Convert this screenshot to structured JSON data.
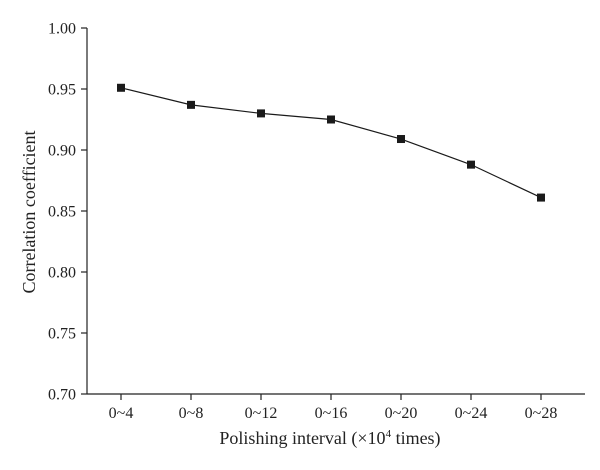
{
  "chart_data": {
    "type": "line",
    "xlabel": "Polishing interval (×10⁴ times)",
    "xlabel_parts": {
      "pre": "Polishing interval (×10",
      "sup": "4",
      "post": " times)"
    },
    "ylabel": "Correlation coefficient",
    "categories": [
      "0~4",
      "0~8",
      "0~12",
      "0~16",
      "0~20",
      "0~24",
      "0~28"
    ],
    "series": [
      {
        "values": [
          0.951,
          0.937,
          0.93,
          0.925,
          0.909,
          0.888,
          0.861
        ]
      }
    ],
    "ylim": [
      0.7,
      1.0
    ],
    "yticks": [
      "0.70",
      "0.75",
      "0.80",
      "0.85",
      "0.90",
      "0.95",
      "1.00"
    ],
    "ytick_values": [
      0.7,
      0.75,
      0.8,
      0.85,
      0.9,
      0.95,
      1.0
    ],
    "marker": "square",
    "line_color": "#1a1a1a",
    "grid": false,
    "legend": "none"
  }
}
